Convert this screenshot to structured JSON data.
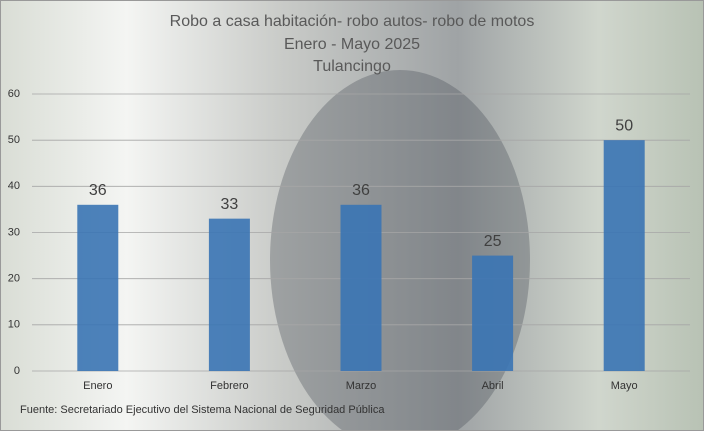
{
  "chart_data": {
    "type": "bar",
    "title": "Robo a  casa habitación- robo autos- robo de motos",
    "subtitles": [
      "Enero - Mayo 2025",
      "Tulancingo"
    ],
    "categories": [
      "Enero",
      "Febrero",
      "Marzo",
      "Abril",
      "Mayo"
    ],
    "values": [
      36,
      33,
      36,
      25,
      50
    ],
    "color": "#3a74b4",
    "ylim": [
      0,
      60
    ],
    "yticks": [
      0,
      10,
      20,
      30,
      40,
      50,
      60
    ],
    "grid": true,
    "source": "Fuente:  Secretariado Ejecutivo del Sistema Nacional de Seguridad Pública"
  }
}
